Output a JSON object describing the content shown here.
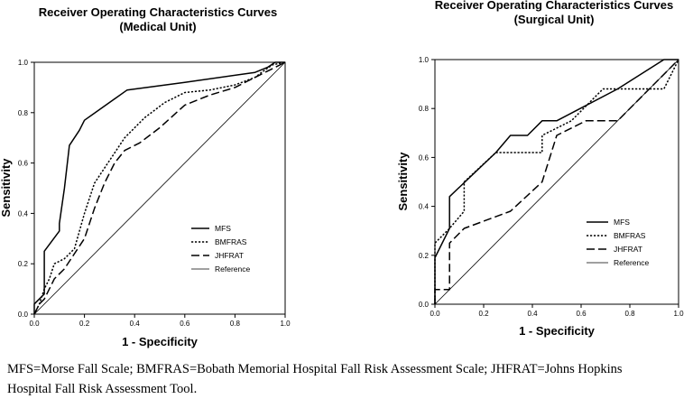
{
  "chart_data": [
    {
      "type": "line",
      "title": "Receiver Operating Characteristics  Curves",
      "subtitle": "(Medical Unit)",
      "xlabel": "1 - Specificity",
      "ylabel": "Sensitivity",
      "xlim": [
        0,
        1
      ],
      "ylim": [
        0,
        1
      ],
      "xticks": [
        "0.0",
        "0.2",
        "0.4",
        "0.6",
        "0.8",
        "1.0"
      ],
      "yticks": [
        "0.0",
        "0.2",
        "0.4",
        "0.6",
        "0.8",
        "1.0"
      ],
      "grid": false,
      "legend_position": "bottom-right",
      "series": [
        {
          "name": "MFS",
          "style": "solid",
          "x": [
            0,
            0,
            0.04,
            0.04,
            0.1,
            0.1,
            0.12,
            0.14,
            0.18,
            0.2,
            0.37,
            0.6,
            0.88,
            0.93,
            0.96,
            1
          ],
          "y": [
            0,
            0.04,
            0.08,
            0.25,
            0.33,
            0.36,
            0.5,
            0.67,
            0.73,
            0.77,
            0.89,
            0.92,
            0.96,
            0.98,
            1,
            1
          ]
        },
        {
          "name": "BMFRAS",
          "style": "dotted",
          "x": [
            0,
            0.02,
            0.04,
            0.06,
            0.08,
            0.12,
            0.16,
            0.2,
            0.24,
            0.28,
            0.32,
            0.36,
            0.44,
            0.52,
            0.6,
            0.7,
            0.8,
            0.88,
            0.92,
            0.95,
            1
          ],
          "y": [
            0,
            0.04,
            0.1,
            0.14,
            0.2,
            0.22,
            0.26,
            0.4,
            0.52,
            0.58,
            0.64,
            0.7,
            0.78,
            0.84,
            0.88,
            0.89,
            0.91,
            0.94,
            0.97,
            0.99,
            1
          ]
        },
        {
          "name": "JHFRAT",
          "style": "dashed",
          "x": [
            0,
            0.02,
            0.04,
            0.06,
            0.08,
            0.12,
            0.16,
            0.2,
            0.24,
            0.28,
            0.32,
            0.36,
            0.42,
            0.5,
            0.6,
            0.7,
            0.8,
            0.86,
            0.9,
            0.94,
            1
          ],
          "y": [
            0,
            0.04,
            0.06,
            0.1,
            0.14,
            0.18,
            0.24,
            0.3,
            0.42,
            0.52,
            0.6,
            0.65,
            0.68,
            0.74,
            0.83,
            0.87,
            0.9,
            0.93,
            0.95,
            0.97,
            1
          ]
        },
        {
          "name": "Reference",
          "style": "thin",
          "x": [
            0,
            1
          ],
          "y": [
            0,
            1
          ]
        }
      ]
    },
    {
      "type": "line",
      "title": "Receiver Operating Characteristics  Curves",
      "subtitle": "(Surgical Unit)",
      "xlabel": "1 - Specificity",
      "ylabel": "Sensitivity",
      "xlim": [
        0,
        1
      ],
      "ylim": [
        0,
        1
      ],
      "xticks": [
        "0.0",
        "0.2",
        "0.4",
        "0.6",
        "0.8",
        "1.0"
      ],
      "yticks": [
        "0.0",
        "0.2",
        "0.4",
        "0.6",
        "0.8",
        "1.0"
      ],
      "grid": false,
      "legend_position": "bottom-right",
      "series": [
        {
          "name": "MFS",
          "style": "solid",
          "x": [
            0,
            0,
            0.06,
            0.06,
            0.25,
            0.31,
            0.38,
            0.44,
            0.5,
            0.75,
            0.94,
            1
          ],
          "y": [
            0,
            0.19,
            0.31,
            0.44,
            0.62,
            0.69,
            0.69,
            0.75,
            0.75,
            0.88,
            1,
            1
          ]
        },
        {
          "name": "BMFRAS",
          "style": "dotted",
          "x": [
            0,
            0,
            0.06,
            0.12,
            0.12,
            0.25,
            0.44,
            0.44,
            0.56,
            0.69,
            0.94,
            1
          ],
          "y": [
            0,
            0.25,
            0.31,
            0.38,
            0.5,
            0.62,
            0.62,
            0.69,
            0.75,
            0.88,
            0.88,
            1
          ]
        },
        {
          "name": "JHFRAT",
          "style": "dashed",
          "x": [
            0,
            0,
            0.06,
            0.06,
            0.12,
            0.31,
            0.44,
            0.5,
            0.62,
            0.75,
            0.88,
            0.94,
            1
          ],
          "y": [
            0,
            0.06,
            0.06,
            0.25,
            0.31,
            0.38,
            0.5,
            0.69,
            0.75,
            0.75,
            0.88,
            0.94,
            1
          ]
        },
        {
          "name": "Reference",
          "style": "thin",
          "x": [
            0,
            1
          ],
          "y": [
            0,
            1
          ]
        }
      ]
    }
  ],
  "caption": {
    "line1": "MFS=Morse Fall Scale; BMFRAS=Bobath Memorial Hospital Fall Risk Assessment Scale; JHFRAT=Johns Hopkins",
    "line2": "Hospital Fall Risk Assessment Tool."
  }
}
